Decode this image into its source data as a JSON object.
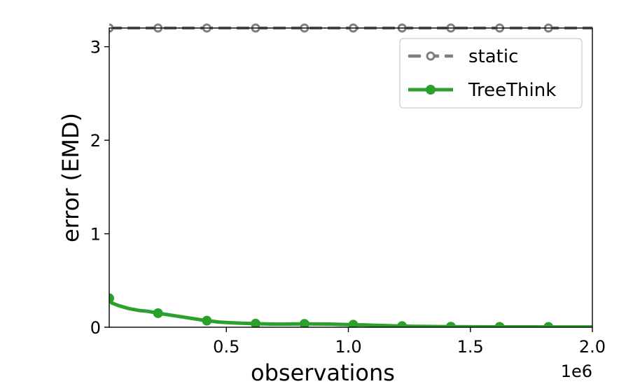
{
  "chart_data": {
    "type": "line",
    "xlabel": "observations",
    "ylabel": "error (EMD)",
    "x_offset_label": "1e6",
    "xlim": [
      0.02,
      2.0
    ],
    "ylim": [
      0,
      3.2
    ],
    "xticks": [
      0.5,
      1.0,
      1.5,
      2.0
    ],
    "xtick_labels": [
      "0.5",
      "1.0",
      "1.5",
      "2.0"
    ],
    "yticks": [
      0,
      1,
      2,
      3
    ],
    "ytick_labels": [
      "0",
      "1",
      "2",
      "3"
    ],
    "grid": false,
    "legend_position": "upper-right",
    "series": [
      {
        "name": "static",
        "color": "#7f7f7f",
        "line_style": "dashed",
        "marker": "hollow-circle",
        "x": [
          0.02,
          0.22,
          0.42,
          0.62,
          0.82,
          1.02,
          1.22,
          1.42,
          1.62,
          1.82,
          2.0
        ],
        "y": [
          3.2,
          3.2,
          3.2,
          3.2,
          3.2,
          3.2,
          3.2,
          3.2,
          3.2,
          3.2,
          3.2
        ],
        "marker_x": [
          0.02,
          0.22,
          0.42,
          0.62,
          0.82,
          1.02,
          1.22,
          1.42,
          1.62,
          1.82
        ]
      },
      {
        "name": "TreeThink",
        "color": "#2ca02c",
        "line_style": "solid",
        "marker": "filled-circle",
        "x": [
          0.02,
          0.03,
          0.06,
          0.1,
          0.14,
          0.18,
          0.22,
          0.27,
          0.32,
          0.37,
          0.42,
          0.47,
          0.52,
          0.57,
          0.62,
          0.67,
          0.72,
          0.77,
          0.82,
          0.87,
          0.92,
          0.97,
          1.02,
          1.07,
          1.12,
          1.17,
          1.22,
          1.27,
          1.32,
          1.37,
          1.42,
          1.52,
          1.62,
          1.72,
          1.82,
          1.92,
          2.0
        ],
        "y": [
          0.31,
          0.26,
          0.23,
          0.2,
          0.18,
          0.17,
          0.15,
          0.13,
          0.11,
          0.09,
          0.07,
          0.055,
          0.048,
          0.042,
          0.038,
          0.035,
          0.033,
          0.035,
          0.036,
          0.035,
          0.034,
          0.03,
          0.027,
          0.024,
          0.02,
          0.016,
          0.012,
          0.009,
          0.008,
          0.007,
          0.006,
          0.005,
          0.004,
          0.004,
          0.003,
          0.003,
          0.003
        ],
        "marker_x": [
          0.02,
          0.22,
          0.42,
          0.62,
          0.82,
          1.02,
          1.22,
          1.42,
          1.62,
          1.82
        ],
        "marker_y": [
          0.31,
          0.15,
          0.07,
          0.038,
          0.036,
          0.027,
          0.012,
          0.006,
          0.004,
          0.003
        ]
      }
    ]
  }
}
